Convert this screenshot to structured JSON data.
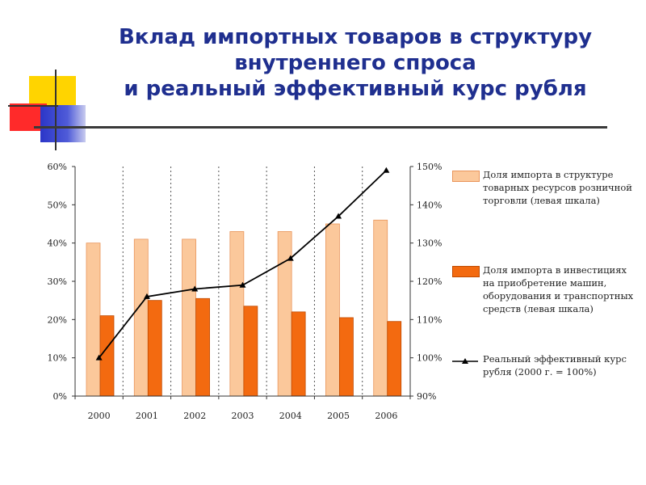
{
  "title": {
    "lines": [
      "Вклад импортных товаров в структуру",
      "внутреннего спроса",
      "и реальный эффективный курс рубля"
    ]
  },
  "colors": {
    "title": "#1f2f8f",
    "import_trade": "#fbc89b",
    "import_trade_border": "#e9955a",
    "import_invest": "#f36a10",
    "import_invest_border": "#c04a00",
    "rate_line": "#000000",
    "deco_yellow": "#ffd400",
    "deco_red": "#ff2a2a",
    "deco_blue": "#2b36c8"
  },
  "chart_data": {
    "type": "bar",
    "categories": [
      "2000",
      "2001",
      "2002",
      "2003",
      "2004",
      "2005",
      "2006"
    ],
    "y_left": {
      "ticks": [
        "0%",
        "10%",
        "20%",
        "30%",
        "40%",
        "50%",
        "60%"
      ],
      "min": 0,
      "max": 60
    },
    "y_right": {
      "ticks": [
        "90%",
        "100%",
        "110%",
        "120%",
        "130%",
        "140%",
        "150%"
      ],
      "min": 90,
      "max": 150
    },
    "grid": "vertical-dashed",
    "legend_position": "right",
    "series": [
      {
        "name": "Доля импорта в структуре товарных ресурсов розничной торговли (левая шкала)",
        "type": "bar",
        "axis": "left",
        "values": [
          40,
          41,
          41,
          43,
          43,
          45,
          46
        ]
      },
      {
        "name": "Доля импорта в инвестициях на приобретение машин, оборудования и транспортных средств (левая шкала)",
        "type": "bar",
        "axis": "left",
        "values": [
          21,
          25,
          25.5,
          23.5,
          22,
          20.5,
          19.5
        ]
      },
      {
        "name": "Реальный эффективный курс рубля (2000 г. = 100%)",
        "type": "line",
        "axis": "right",
        "values": [
          100,
          116,
          118,
          119,
          126,
          137,
          149
        ]
      }
    ]
  }
}
